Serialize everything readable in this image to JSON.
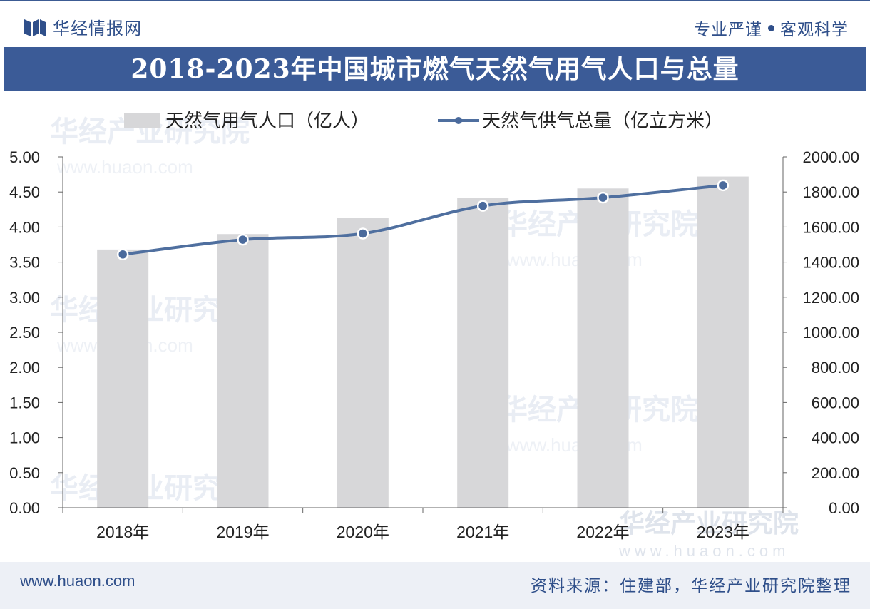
{
  "header": {
    "brand": "华经情报网",
    "slogan_left": "专业严谨",
    "slogan_right": "客观科学"
  },
  "title": "2018-2023年中国城市燃气天然气用气人口与总量",
  "footer": {
    "url": "www.huaon.com",
    "source": "资料来源：住建部，华经产业研究院整理"
  },
  "watermark": {
    "name": "华经产业研究院",
    "url": "www.huaon.com"
  },
  "colors": {
    "bar": "#d7d7d9",
    "line": "#4f6f9f",
    "marker": "#4a6a9c",
    "title_bg": "#3b5b97",
    "brand": "#2f4f8a"
  },
  "chart_data": {
    "type": "bar",
    "categories": [
      "2018年",
      "2019年",
      "2020年",
      "2021年",
      "2022年",
      "2023年"
    ],
    "series": [
      {
        "name": "天然气用气人口（亿人）",
        "type": "bar",
        "axis": "left",
        "values": [
          3.68,
          3.9,
          4.13,
          4.42,
          4.55,
          4.72
        ]
      },
      {
        "name": "天然气供气总量（亿立方米）",
        "type": "line",
        "axis": "right",
        "values": [
          1444,
          1528,
          1563,
          1721,
          1768,
          1838
        ]
      }
    ],
    "left_axis": {
      "range": [
        0,
        5
      ],
      "ticks": [
        "0.00",
        "0.50",
        "1.00",
        "1.50",
        "2.00",
        "2.50",
        "3.00",
        "3.50",
        "4.00",
        "4.50",
        "5.00"
      ]
    },
    "right_axis": {
      "range": [
        0,
        2000
      ],
      "ticks": [
        "0.00",
        "200.00",
        "400.00",
        "600.00",
        "800.00",
        "1000.00",
        "1200.00",
        "1400.00",
        "1600.00",
        "1800.00",
        "2000.00"
      ]
    },
    "legend_position": "top",
    "grid": false
  }
}
